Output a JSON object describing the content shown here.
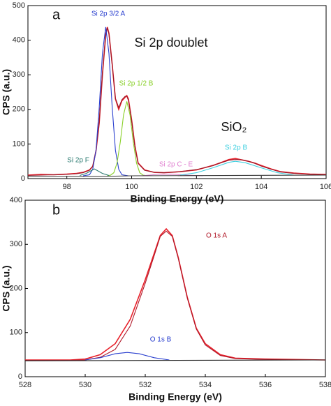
{
  "chart_data": [
    {
      "type": "line",
      "annotations": [
        "a",
        "Si 2p doublet",
        "SiO₂"
      ],
      "xlabel": "Binding Energy (eV)",
      "ylabel": "CPS (a.u.)",
      "xlim": [
        96.8,
        106
      ],
      "ylim": [
        0,
        500
      ],
      "xticks": [
        98,
        100,
        102,
        104,
        106
      ],
      "yticks": [
        0,
        100,
        200,
        300,
        400,
        500
      ],
      "series": [
        {
          "color": "#e8202a",
          "x": [
            96.8,
            97.2,
            97.6,
            98,
            98.3,
            98.5,
            98.7,
            98.8,
            98.9,
            99,
            99.1,
            99.2,
            99.25,
            99.3,
            99.4,
            99.5,
            99.6,
            99.7,
            99.8,
            99.85,
            99.9,
            100,
            100.1,
            100.2,
            100.4,
            100.7,
            101,
            101.5,
            102,
            102.5,
            102.8,
            103,
            103.2,
            103.4,
            103.6,
            103.8,
            104,
            104.3,
            104.6,
            105,
            105.5,
            106
          ],
          "values": [
            10,
            12,
            11,
            13,
            15,
            18,
            25,
            35,
            80,
            160,
            300,
            415,
            438,
            420,
            330,
            230,
            200,
            225,
            235,
            240,
            230,
            170,
            95,
            45,
            25,
            18,
            17,
            20,
            25,
            38,
            48,
            55,
            58,
            54,
            50,
            45,
            38,
            28,
            20,
            16,
            13,
            12
          ]
        },
        {
          "color": "#9a1828",
          "x": [
            96.8,
            97.2,
            97.6,
            98,
            98.3,
            98.5,
            98.7,
            98.8,
            98.9,
            99,
            99.1,
            99.2,
            99.25,
            99.3,
            99.4,
            99.5,
            99.6,
            99.7,
            99.8,
            99.85,
            99.9,
            100,
            100.1,
            100.2,
            100.4,
            100.7,
            101,
            101.5,
            102,
            102.5,
            102.8,
            103,
            103.2,
            103.4,
            103.6,
            103.8,
            104,
            104.3,
            104.6,
            105,
            105.5,
            106
          ],
          "values": [
            9,
            10,
            11,
            12,
            14,
            17,
            24,
            36,
            82,
            165,
            305,
            418,
            436,
            418,
            328,
            232,
            205,
            228,
            238,
            238,
            226,
            168,
            92,
            44,
            24,
            18,
            17,
            20,
            26,
            37,
            47,
            53,
            55,
            54,
            50,
            44,
            36,
            27,
            19,
            15,
            12,
            11
          ]
        },
        {
          "name": "Si 2p 3/2 A",
          "color": "#2a3fcf",
          "x": [
            98.5,
            98.7,
            98.8,
            98.9,
            99,
            99.1,
            99.2,
            99.3,
            99.4,
            99.5,
            99.6,
            99.7,
            99.9
          ],
          "values": [
            8,
            11,
            27,
            82,
            205,
            362,
            438,
            362,
            205,
            82,
            27,
            11,
            8
          ]
        },
        {
          "name": "Si 2p 1/2 B",
          "color": "#8ad02a",
          "x": [
            99.25,
            99.35,
            99.45,
            99.55,
            99.65,
            99.75,
            99.85,
            99.95,
            100.05,
            100.15,
            100.25,
            100.35,
            100.5
          ],
          "values": [
            8,
            10,
            17,
            45,
            106,
            184,
            223,
            184,
            106,
            45,
            17,
            10,
            8
          ]
        },
        {
          "name": "Si 2p F",
          "color": "#2a7a70",
          "x": [
            98.4,
            98.6,
            98.85,
            99.1,
            99.3
          ],
          "values": [
            9,
            15,
            28,
            15,
            9
          ]
        },
        {
          "name": "Si 2p C - E",
          "color": "#e080d0",
          "x": [
            100.3,
            100.8,
            101.2,
            101.7,
            102.2
          ],
          "values": [
            8,
            12,
            13,
            10,
            8
          ]
        },
        {
          "name": "Si 2p B",
          "color": "#40d0e0",
          "x": [
            101.5,
            102,
            102.5,
            103,
            103.2,
            103.5,
            104,
            104.5,
            105
          ],
          "values": [
            10,
            17,
            31,
            47,
            50,
            46,
            31,
            17,
            10
          ]
        },
        {
          "color": "#333333",
          "x": [
            96.8,
            99,
            100,
            106
          ],
          "values": [
            6,
            6,
            8,
            10
          ]
        }
      ]
    },
    {
      "type": "line",
      "annotations": [
        "b"
      ],
      "xlabel": "Binding Energy (eV)",
      "ylabel": "CPS (a.u.)",
      "xlim": [
        528,
        538
      ],
      "ylim": [
        0,
        400
      ],
      "xticks": [
        528,
        530,
        532,
        534,
        536,
        538
      ],
      "yticks": [
        0,
        100,
        200,
        300,
        400
      ],
      "series": [
        {
          "color": "#e8202a",
          "x": [
            528,
            529,
            529.5,
            530,
            530.5,
            531,
            531.5,
            532,
            532.3,
            532.5,
            532.7,
            532.9,
            533.1,
            533.4,
            533.7,
            534,
            534.5,
            535,
            536,
            537,
            538
          ],
          "values": [
            38,
            38,
            38,
            40,
            50,
            75,
            130,
            220,
            280,
            320,
            335,
            320,
            270,
            180,
            110,
            75,
            50,
            42,
            40,
            39,
            38
          ]
        },
        {
          "name": "O 1s A",
          "color": "#b01828",
          "x": [
            528,
            529,
            529.5,
            530,
            530.5,
            531,
            531.5,
            532,
            532.3,
            532.5,
            532.7,
            532.9,
            533.1,
            533.4,
            533.7,
            534,
            534.5,
            535,
            536,
            537,
            538
          ],
          "values": [
            37,
            37,
            37,
            38,
            44,
            62,
            115,
            212,
            275,
            318,
            330,
            318,
            268,
            178,
            108,
            72,
            48,
            41,
            39,
            38,
            38
          ]
        },
        {
          "name": "O 1s B",
          "color": "#2a3fcf",
          "x": [
            530,
            530.5,
            531,
            531.4,
            531.8,
            532.3,
            532.8
          ],
          "values": [
            38,
            43,
            52,
            55,
            52,
            43,
            38
          ]
        },
        {
          "color": "#222222",
          "x": [
            528,
            538
          ],
          "values": [
            36,
            38
          ]
        }
      ]
    }
  ]
}
